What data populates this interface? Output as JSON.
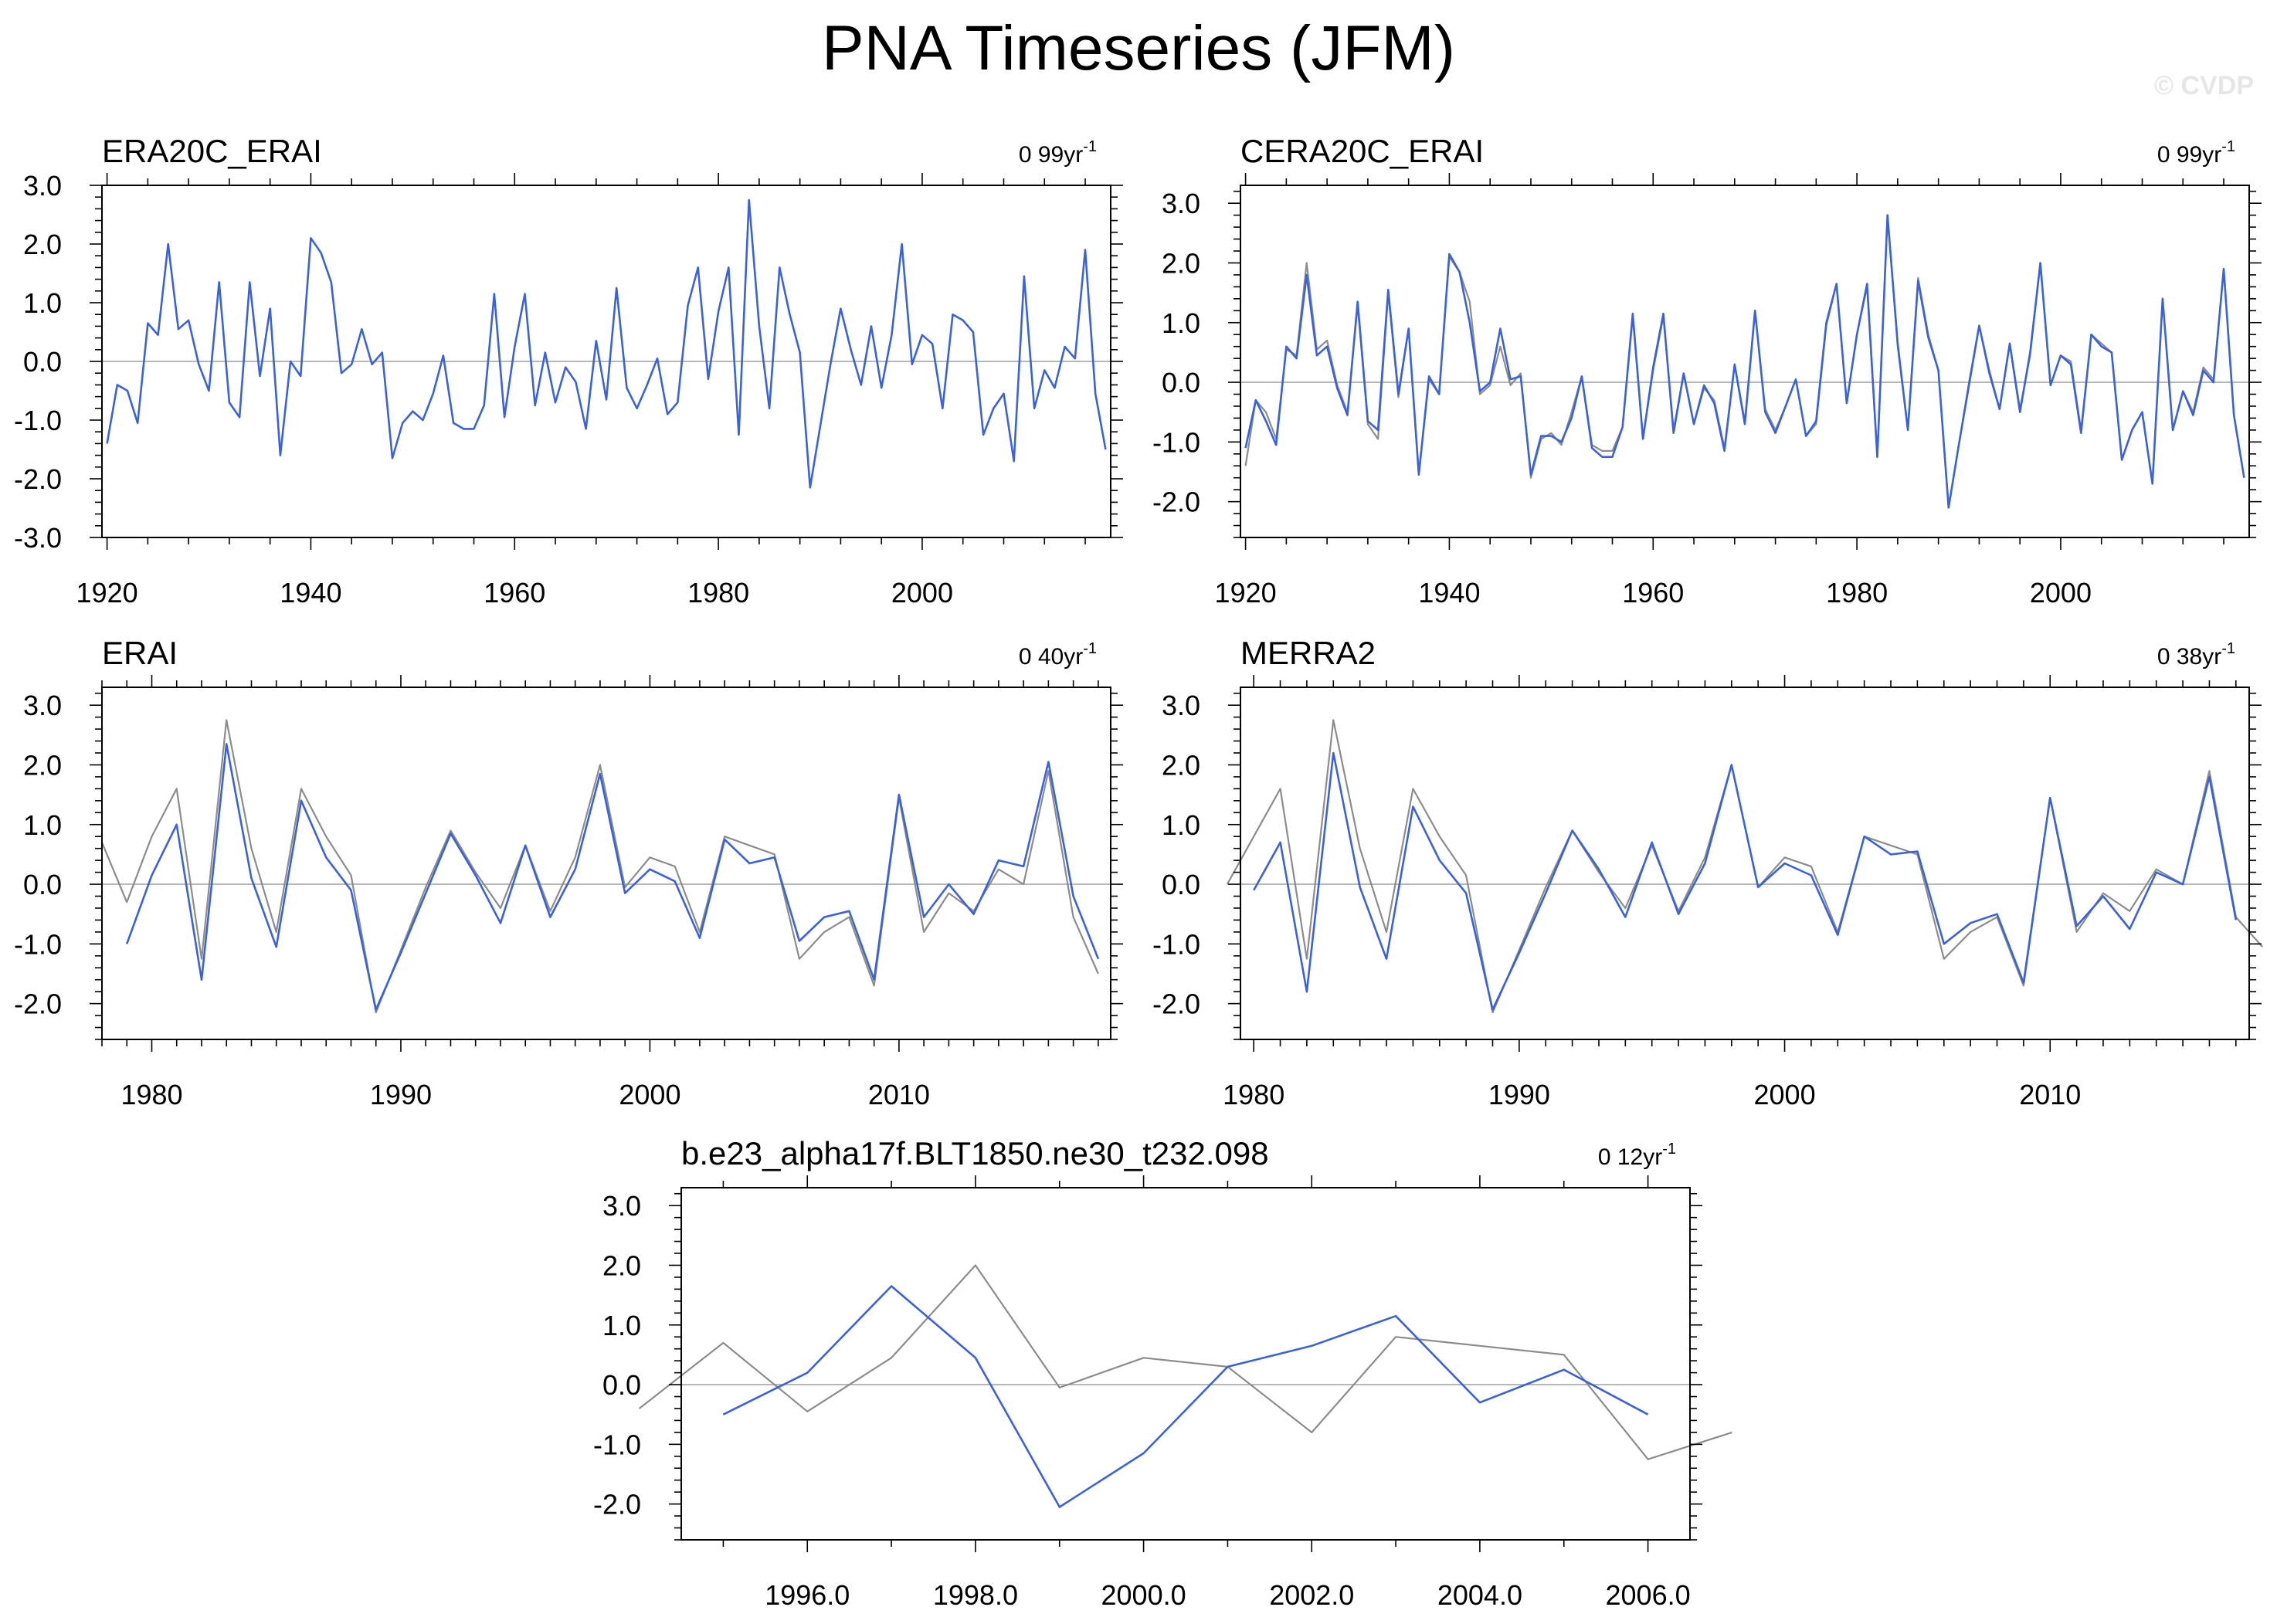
{
  "figure": {
    "title": "PNA Timeseries (JFM)",
    "credit": "© CVDP",
    "colors": {
      "model": "#3b62d6",
      "reference": "#8c8c8c",
      "zero": "#b8b8b8",
      "frame": "#000000"
    }
  },
  "chart_data": [
    {
      "type": "line",
      "title": "ERA20C_ERAI",
      "period": "0 99yr",
      "period_sup": "-1",
      "xlim": [
        1919.5,
        2018.5
      ],
      "ylim": [
        -3.0,
        3.0
      ],
      "yticks": [
        -3.0,
        -2.0,
        -1.0,
        0.0,
        1.0,
        2.0,
        3.0
      ],
      "ytick_labels": [
        "-3.0",
        "-2.0",
        "-1.0",
        "0.0",
        "1.0",
        "2.0",
        "3.0"
      ],
      "xticks": [
        1920,
        1940,
        1960,
        1980,
        2000
      ],
      "xtick_labels": [
        "1920",
        "1940",
        "1960",
        "1980",
        "2000"
      ],
      "grid": false,
      "zero_line": true,
      "x_start": 1920,
      "series": [
        {
          "role": "model",
          "values": [
            -1.4,
            -0.4,
            -0.5,
            -1.05,
            0.65,
            0.45,
            2.0,
            0.55,
            0.7,
            -0.05,
            -0.5,
            1.35,
            -0.7,
            -0.95,
            1.35,
            -0.25,
            0.9,
            -1.6,
            0.0,
            -0.25,
            2.1,
            1.85,
            1.35,
            -0.2,
            -0.05,
            0.55,
            -0.05,
            0.15,
            -1.65,
            -1.05,
            -0.85,
            -1.0,
            -0.55,
            0.1,
            -1.05,
            -1.15,
            -1.15,
            -0.75,
            1.15,
            -0.95,
            0.25,
            1.15,
            -0.75,
            0.15,
            -0.7,
            -0.1,
            -0.35,
            -1.15,
            0.35,
            -0.65,
            1.25,
            -0.45,
            -0.8,
            -0.4,
            0.05,
            -0.9,
            -0.7,
            0.95,
            1.6,
            -0.3,
            0.85,
            1.6,
            -1.25,
            2.75,
            0.6,
            -0.8,
            1.6,
            0.8,
            0.15,
            -2.15,
            -1.1,
            -0.05,
            0.9,
            0.2,
            -0.4,
            0.6,
            -0.45,
            0.45,
            2.0,
            -0.05,
            0.45,
            0.3,
            -0.8,
            0.8,
            0.7,
            0.5,
            -1.25,
            -0.8,
            -0.55,
            -1.7,
            1.45,
            -0.8,
            -0.15,
            -0.45,
            0.25,
            0.05,
            1.9,
            -0.55,
            -1.5
          ]
        }
      ]
    },
    {
      "type": "line",
      "title": "CERA20C_ERAI",
      "period": "0 99yr",
      "period_sup": "-1",
      "xlim": [
        1919.5,
        2018.5
      ],
      "ylim": [
        -2.6,
        3.3
      ],
      "yticks": [
        -2.0,
        -1.0,
        0.0,
        1.0,
        2.0,
        3.0
      ],
      "ytick_labels": [
        "-2.0",
        "-1.0",
        "0.0",
        "1.0",
        "2.0",
        "3.0"
      ],
      "xticks": [
        1920,
        1940,
        1960,
        1980,
        2000
      ],
      "xtick_labels": [
        "1920",
        "1940",
        "1960",
        "1980",
        "2000"
      ],
      "grid": false,
      "zero_line": true,
      "x_start": 1920,
      "series": [
        {
          "role": "reference",
          "values": [
            -1.4,
            -0.3,
            -0.5,
            -0.95,
            0.55,
            0.45,
            2.0,
            0.55,
            0.7,
            -0.05,
            -0.5,
            1.3,
            -0.7,
            -0.95,
            1.5,
            -0.25,
            0.9,
            -1.55,
            0.05,
            -0.2,
            2.1,
            1.85,
            1.35,
            -0.2,
            -0.05,
            0.6,
            -0.05,
            0.15,
            -1.6,
            -0.95,
            -0.85,
            -1.05,
            -0.5,
            0.1,
            -1.05,
            -1.15,
            -1.15,
            -0.75,
            1.1,
            -0.95,
            0.2,
            1.1,
            -0.8,
            0.15,
            -0.7,
            -0.1,
            -0.3,
            -1.1,
            0.3,
            -0.65,
            1.2,
            -0.45,
            -0.8,
            -0.4,
            0.05,
            -0.9,
            -0.7,
            0.95,
            1.65,
            -0.35,
            0.8,
            1.6,
            -1.25,
            2.8,
            0.6,
            -0.8,
            1.75,
            0.8,
            0.2,
            -2.1,
            -1.05,
            0.0,
            0.95,
            0.2,
            -0.45,
            0.65,
            -0.45,
            0.45,
            2.0,
            -0.05,
            0.45,
            0.35,
            -0.8,
            0.8,
            0.65,
            0.5,
            -1.3,
            -0.8,
            -0.5,
            -1.7,
            1.4,
            -0.8,
            -0.15,
            -0.5,
            0.25,
            0.05,
            1.9,
            -0.55,
            -1.6
          ]
        },
        {
          "role": "model",
          "values": [
            -1.1,
            -0.3,
            -0.65,
            -1.05,
            0.6,
            0.4,
            1.8,
            0.45,
            0.6,
            -0.1,
            -0.55,
            1.35,
            -0.65,
            -0.8,
            1.55,
            -0.2,
            0.9,
            -1.55,
            0.1,
            -0.2,
            2.15,
            1.85,
            1.0,
            -0.15,
            0.0,
            0.9,
            0.05,
            0.1,
            -1.55,
            -0.9,
            -0.9,
            -1.0,
            -0.6,
            0.1,
            -1.1,
            -1.25,
            -1.25,
            -0.75,
            1.15,
            -0.95,
            0.25,
            1.15,
            -0.85,
            0.15,
            -0.7,
            -0.05,
            -0.35,
            -1.15,
            0.3,
            -0.7,
            1.2,
            -0.5,
            -0.85,
            -0.4,
            0.05,
            -0.9,
            -0.65,
            1.0,
            1.65,
            -0.35,
            0.8,
            1.65,
            -1.25,
            2.8,
            0.65,
            -0.8,
            1.7,
            0.75,
            0.2,
            -2.1,
            -1.05,
            -0.05,
            0.95,
            0.15,
            -0.45,
            0.65,
            -0.5,
            0.5,
            2.0,
            -0.05,
            0.45,
            0.3,
            -0.85,
            0.8,
            0.6,
            0.5,
            -1.3,
            -0.8,
            -0.5,
            -1.7,
            1.4,
            -0.8,
            -0.15,
            -0.55,
            0.2,
            0.0,
            1.9,
            -0.55,
            -1.6
          ]
        }
      ]
    },
    {
      "type": "line",
      "title": "ERAI",
      "period": "0 40yr",
      "period_sup": "-1",
      "xlim": [
        1978,
        2018.5
      ],
      "ylim": [
        -2.6,
        3.3
      ],
      "yticks": [
        -2.0,
        -1.0,
        0.0,
        1.0,
        2.0,
        3.0
      ],
      "ytick_labels": [
        "-2.0",
        "-1.0",
        "0.0",
        "1.0",
        "2.0",
        "3.0"
      ],
      "xticks": [
        1980,
        1990,
        2000,
        2010
      ],
      "xtick_labels": [
        "1980",
        "1990",
        "2000",
        "2010"
      ],
      "grid": false,
      "zero_line": true,
      "x_start": 1978,
      "series": [
        {
          "role": "reference",
          "values": [
            0.7,
            -0.3,
            0.8,
            1.6,
            -1.25,
            2.75,
            0.6,
            -0.8,
            1.6,
            0.8,
            0.15,
            -2.15,
            -1.1,
            -0.05,
            0.9,
            0.2,
            -0.4,
            0.65,
            -0.45,
            0.45,
            2.0,
            -0.05,
            0.45,
            0.3,
            -0.8,
            0.8,
            0.65,
            0.5,
            -1.25,
            -0.8,
            -0.55,
            -1.7,
            1.45,
            -0.8,
            -0.15,
            -0.45,
            0.25,
            0.0,
            1.9,
            -0.55,
            -1.5
          ]
        },
        {
          "role": "model",
          "values": [
            null,
            -1.0,
            0.15,
            1.0,
            -1.6,
            2.35,
            0.1,
            -1.05,
            1.4,
            0.45,
            -0.1,
            -2.1,
            -1.15,
            -0.15,
            0.85,
            0.15,
            -0.65,
            0.65,
            -0.55,
            0.25,
            1.85,
            -0.15,
            0.25,
            0.05,
            -0.9,
            0.75,
            0.35,
            0.45,
            -0.95,
            -0.55,
            -0.45,
            -1.6,
            1.5,
            -0.55,
            0.0,
            -0.5,
            0.4,
            0.3,
            2.05,
            -0.2,
            -1.25
          ]
        }
      ]
    },
    {
      "type": "line",
      "title": "MERRA2",
      "period": "0 38yr",
      "period_sup": "-1",
      "xlim": [
        1979.5,
        2017.5
      ],
      "ylim": [
        -2.6,
        3.3
      ],
      "yticks": [
        -2.0,
        -1.0,
        0.0,
        1.0,
        2.0,
        3.0
      ],
      "ytick_labels": [
        "-2.0",
        "-1.0",
        "0.0",
        "1.0",
        "2.0",
        "3.0"
      ],
      "xticks": [
        1980,
        1990,
        2000,
        2010
      ],
      "xtick_labels": [
        "1980",
        "1990",
        "2000",
        "2010"
      ],
      "grid": false,
      "zero_line": true,
      "x_start": 1979,
      "series": [
        {
          "role": "reference",
          "values": [
            0.0,
            0.8,
            1.6,
            -1.25,
            2.75,
            0.6,
            -0.8,
            1.6,
            0.8,
            0.15,
            -2.15,
            -1.1,
            -0.05,
            0.9,
            0.2,
            -0.4,
            0.65,
            -0.45,
            0.45,
            2.0,
            -0.05,
            0.45,
            0.3,
            -0.8,
            0.8,
            0.65,
            0.5,
            -1.25,
            -0.8,
            -0.55,
            -1.7,
            1.45,
            -0.8,
            -0.15,
            -0.45,
            0.25,
            0.0,
            1.9,
            -0.55,
            -1.05
          ]
        },
        {
          "role": "model",
          "values": [
            null,
            -0.1,
            0.7,
            -1.8,
            2.2,
            -0.05,
            -1.25,
            1.3,
            0.4,
            -0.15,
            -2.1,
            -1.15,
            -0.15,
            0.9,
            0.25,
            -0.55,
            0.7,
            -0.5,
            0.35,
            2.0,
            -0.05,
            0.35,
            0.15,
            -0.85,
            0.8,
            0.5,
            0.55,
            -1.0,
            -0.65,
            -0.5,
            -1.65,
            1.45,
            -0.7,
            -0.2,
            -0.75,
            0.2,
            0.0,
            1.8,
            -0.6
          ]
        }
      ]
    },
    {
      "type": "line",
      "title": "b.e23_alpha17f.BLT1850.ne30_t232.098",
      "period": "0 12yr",
      "period_sup": "-1",
      "xlim": [
        1994.5,
        2006.5
      ],
      "ylim": [
        -2.6,
        3.3
      ],
      "yticks": [
        -2.0,
        -1.0,
        0.0,
        1.0,
        2.0,
        3.0
      ],
      "ytick_labels": [
        "-2.0",
        "-1.0",
        "0.0",
        "1.0",
        "2.0",
        "3.0"
      ],
      "xticks": [
        1996,
        1998,
        2000,
        2002,
        2004,
        2006
      ],
      "xtick_labels": [
        "1996.0",
        "1998.0",
        "2000.0",
        "2002.0",
        "2004.0",
        "2006.0"
      ],
      "grid": false,
      "zero_line": true,
      "x_start": 1994,
      "series": [
        {
          "role": "reference",
          "values": [
            -0.4,
            0.7,
            -0.45,
            0.45,
            2.0,
            -0.05,
            0.45,
            0.3,
            -0.8,
            0.8,
            0.65,
            0.5,
            -1.25,
            -0.8
          ]
        },
        {
          "role": "model",
          "values": [
            null,
            -0.5,
            0.2,
            1.65,
            0.45,
            -2.05,
            -1.15,
            0.3,
            0.65,
            1.15,
            -0.3,
            0.25,
            -0.5,
            null
          ]
        }
      ]
    }
  ]
}
